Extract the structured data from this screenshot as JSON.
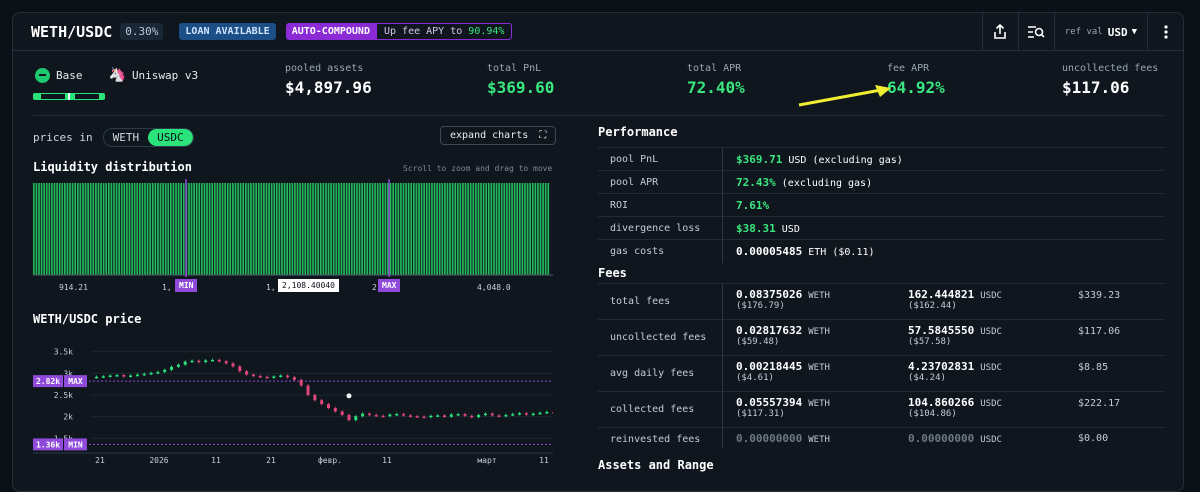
{
  "header": {
    "pair": "WETH/USDC",
    "fee_tier": "0.30%",
    "badge_loan": "LOAN AVAILABLE",
    "badge_auto": "AUTO-COMPOUND",
    "apy_prefix": "Up fee APY to",
    "apy_value": "90.94%",
    "ref_label": "ref val",
    "ref_currency": "USD"
  },
  "network": {
    "chain": "Base",
    "protocol": "Uniswap v3"
  },
  "stats": [
    {
      "label": "pooled assets",
      "value": "$4,897.96",
      "green": false
    },
    {
      "label": "total PnL",
      "value": "$369.60",
      "green": true
    },
    {
      "label": "total APR",
      "value": "72.40%",
      "green": true
    },
    {
      "label": "fee APR",
      "value": "64.92%",
      "green": true
    },
    {
      "label": "uncollected fees",
      "value": "$117.06",
      "green": false
    }
  ],
  "prices_in": {
    "label": "prices in",
    "options": [
      "WETH",
      "USDC"
    ],
    "active": "USDC"
  },
  "expand_label": "expand charts",
  "liquidity": {
    "title": "Liquidity distribution",
    "hint": "Scroll to zoom and drag to move",
    "labels": [
      "914.21",
      "1,",
      "1,",
      "2",
      "4,048.0"
    ],
    "min_label": "MIN",
    "max_label": "MAX",
    "current_price": "2,108.40040"
  },
  "price_chart": {
    "title": "WETH/USDC price",
    "y_ticks": [
      "3.5k",
      "3k",
      "2.5k",
      "2k",
      "1.5k"
    ],
    "x_ticks": [
      "21",
      "2026",
      "11",
      "21",
      "февр.",
      "11",
      "март",
      "11"
    ],
    "max_tag": "2.82k",
    "min_tag": "1.36k",
    "max_label": "MAX",
    "min_label": "MIN"
  },
  "chart_data": {
    "type": "line",
    "title": "WETH/USDC price",
    "y_ticks": [
      3500,
      3000,
      2500,
      2000,
      1500
    ],
    "range_max": 2820,
    "range_min": 1360,
    "close": [
      2920,
      2930,
      2950,
      2960,
      2930,
      2950,
      2970,
      2990,
      3010,
      3030,
      3080,
      3150,
      3200,
      3270,
      3290,
      3260,
      3300,
      3310,
      3280,
      3230,
      3160,
      3050,
      2970,
      2940,
      2920,
      2900,
      2930,
      2950,
      2910,
      2850,
      2720,
      2500,
      2380,
      2290,
      2200,
      2120,
      2040,
      1920,
      2010,
      2070,
      2040,
      2020,
      2010,
      2050,
      2060,
      2030,
      2010,
      2000,
      1990,
      2020,
      2030,
      2000,
      2050,
      2060,
      2020,
      1990,
      2040,
      2070,
      2030,
      2010,
      2040,
      2060,
      2080,
      2050,
      2070,
      2090,
      2110,
      2100
    ]
  },
  "performance": {
    "title": "Performance",
    "rows": [
      {
        "label": "pool PnL",
        "value": "$369.71",
        "unit": "USD",
        "note": "(excluding gas)",
        "green": true
      },
      {
        "label": "pool APR",
        "value": "72.43%",
        "unit": "",
        "note": "(excluding gas)",
        "green": true
      },
      {
        "label": "ROI",
        "value": "7.61%",
        "unit": "",
        "note": "",
        "green": true
      },
      {
        "label": "divergence loss",
        "value": "$38.31",
        "unit": "USD",
        "note": "",
        "green": true
      },
      {
        "label": "gas costs",
        "value": "0.00005485",
        "unit": "ETH",
        "note": "($0.11)",
        "green": false
      }
    ]
  },
  "fees": {
    "title": "Fees",
    "rows": [
      {
        "label": "total fees",
        "weth": "0.08375026",
        "weth_usd": "($176.79)",
        "usdc": "162.444821",
        "usdc_usd": "($162.44)",
        "total": "$339.23"
      },
      {
        "label": "uncollected fees",
        "weth": "0.02817632",
        "weth_usd": "($59.48)",
        "usdc": "57.5845550",
        "usdc_usd": "($57.58)",
        "total": "$117.06"
      },
      {
        "label": "avg daily fees",
        "weth": "0.00218445",
        "weth_usd": "($4.61)",
        "usdc": "4.23702831",
        "usdc_usd": "($4.24)",
        "total": "$8.85"
      },
      {
        "label": "collected fees",
        "weth": "0.05557394",
        "weth_usd": "($117.31)",
        "usdc": "104.860266",
        "usdc_usd": "($104.86)",
        "total": "$222.17"
      },
      {
        "label": "reinvested fees",
        "weth": "0.00000000",
        "weth_usd": "",
        "usdc": "0.00000000",
        "usdc_usd": "",
        "total": "$0.00"
      }
    ],
    "weth_unit": "WETH",
    "usdc_unit": "USDC"
  },
  "assets_title": "Assets and Range",
  "colors": {
    "accent": "#39e67f",
    "purple": "#8f4ad9",
    "bg": "#0f161e",
    "arrow": "#f1ee32"
  }
}
